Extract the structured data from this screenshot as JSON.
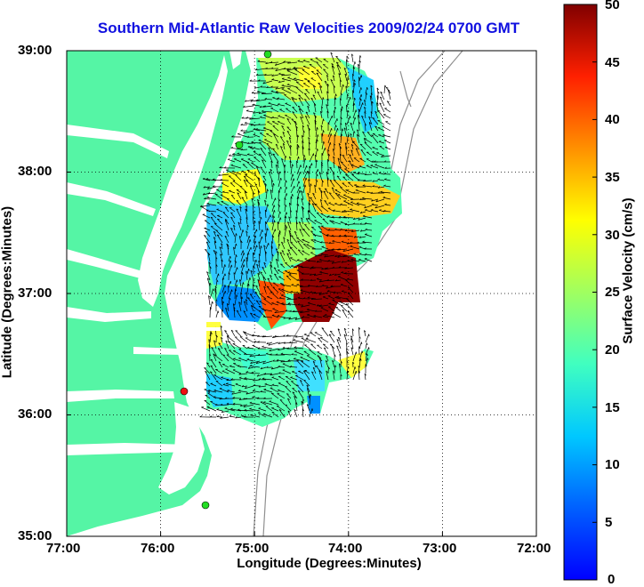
{
  "title": "Southern Mid-Atlantic Raw Velocities 2009/02/24 0700 GMT",
  "xaxis": {
    "label": "Longitude (Degrees:Minutes)",
    "ticks": [
      "77:00",
      "76:00",
      "75:00",
      "74:00",
      "73:00",
      "72:00"
    ]
  },
  "yaxis": {
    "label": "Latitude (Degrees:Minutes)",
    "ticks": [
      "39:00",
      "38:00",
      "37:00",
      "36:00",
      "35:00"
    ]
  },
  "colorbar": {
    "label": "Surface Velocity (cm/s)",
    "ticks": [
      "50",
      "45",
      "40",
      "35",
      "30",
      "25",
      "20",
      "15",
      "10",
      "5",
      "0"
    ]
  },
  "colors": {
    "land": "#55f5a5",
    "title": "#1010e0",
    "station_active": "#22dd22",
    "station_inactive": "#ee1111",
    "bathymetry": "#909090"
  }
}
